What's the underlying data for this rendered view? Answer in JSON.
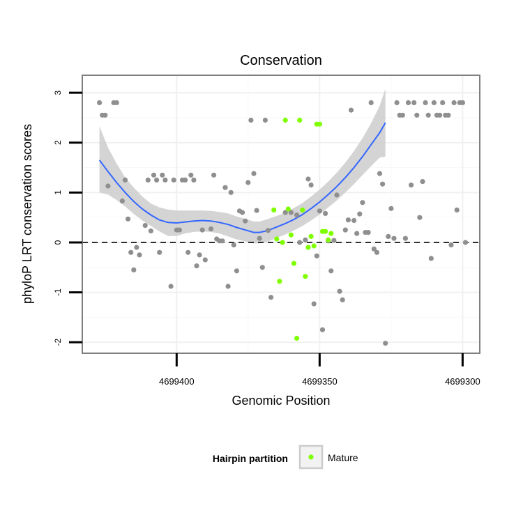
{
  "chart_data": {
    "type": "scatter",
    "title": "Conservation",
    "xlabel": "Genomic Position",
    "ylabel": "phyloP LRT conservation scores",
    "x_axis_reversed": true,
    "xlim": [
      4699433,
      4699294
    ],
    "ylim": [
      -2.22,
      3.35
    ],
    "x_ticks": [
      4699400,
      4699350,
      4699300
    ],
    "y_ticks": [
      -2,
      -1,
      0,
      1,
      2,
      3
    ],
    "reference_line": {
      "y": 0,
      "style": "dashed"
    },
    "grid": true,
    "legend": {
      "title": "Hairpin partition",
      "entries": [
        "Mature"
      ],
      "position": "bottom"
    },
    "colors": {
      "other": "#8f8f8f",
      "mature": "#7fff00",
      "smooth": "#3366ff",
      "ribbon": "#cccccc",
      "panel_border": "#7f7f7f"
    },
    "points_other": [
      [
        4699427,
        2.8
      ],
      [
        4699426,
        2.55
      ],
      [
        4699425,
        2.55
      ],
      [
        4699424,
        1.13
      ],
      [
        4699422,
        2.8
      ],
      [
        4699421,
        2.8
      ],
      [
        4699419,
        0.83
      ],
      [
        4699418,
        1.25
      ],
      [
        4699417,
        0.47
      ],
      [
        4699416,
        -0.2
      ],
      [
        4699415,
        -0.55
      ],
      [
        4699414,
        -0.1
      ],
      [
        4699413,
        -0.25
      ],
      [
        4699411,
        0.34
      ],
      [
        4699410,
        1.25
      ],
      [
        4699409,
        0.23
      ],
      [
        4699408,
        1.35
      ],
      [
        4699407,
        1.25
      ],
      [
        4699406,
        -0.2
      ],
      [
        4699405,
        1.35
      ],
      [
        4699404,
        1.25
      ],
      [
        4699402,
        -0.88
      ],
      [
        4699401,
        1.25
      ],
      [
        4699400,
        0.25
      ],
      [
        4699399,
        0.25
      ],
      [
        4699398,
        1.25
      ],
      [
        4699397,
        1.25
      ],
      [
        4699396,
        -0.2
      ],
      [
        4699395,
        1.35
      ],
      [
        4699394,
        1.25
      ],
      [
        4699393,
        -0.47
      ],
      [
        4699392,
        -0.25
      ],
      [
        4699391,
        0.25
      ],
      [
        4699390,
        -0.35
      ],
      [
        4699388,
        0.27
      ],
      [
        4699387,
        1.35
      ],
      [
        4699386,
        0.07
      ],
      [
        4699385,
        0.03
      ],
      [
        4699384,
        0.03
      ],
      [
        4699383,
        1.1
      ],
      [
        4699382,
        -0.88
      ],
      [
        4699381,
        1.0
      ],
      [
        4699380,
        -0.05
      ],
      [
        4699379,
        -0.57
      ],
      [
        4699378,
        0.63
      ],
      [
        4699377,
        0.6
      ],
      [
        4699376,
        0.43
      ],
      [
        4699375,
        1.2
      ],
      [
        4699374,
        2.45
      ],
      [
        4699373,
        1.38
      ],
      [
        4699372,
        0.64
      ],
      [
        4699371,
        0.08
      ],
      [
        4699370,
        -0.5
      ],
      [
        4699369,
        2.45
      ],
      [
        4699368,
        0.24
      ],
      [
        4699367,
        -1.1
      ],
      [
        4699362,
        0.6
      ],
      [
        4699360,
        0.6
      ],
      [
        4699358,
        0.55
      ],
      [
        4699357,
        0.0
      ],
      [
        4699355,
        0.05
      ],
      [
        4699354,
        1.27
      ],
      [
        4699353,
        1.15
      ],
      [
        4699352,
        -1.23
      ],
      [
        4699351,
        -0.27
      ],
      [
        4699350,
        0.63
      ],
      [
        4699349,
        -1.75
      ],
      [
        4699348,
        0.58
      ],
      [
        4699347,
        0.03
      ],
      [
        4699346,
        -0.57
      ],
      [
        4699345,
        0.04
      ],
      [
        4699344,
        0.95
      ],
      [
        4699343,
        -0.98
      ],
      [
        4699342,
        -1.15
      ],
      [
        4699341,
        0.25
      ],
      [
        4699340,
        0.45
      ],
      [
        4699339,
        2.65
      ],
      [
        4699338,
        0.44
      ],
      [
        4699337,
        0.18
      ],
      [
        4699336,
        0.57
      ],
      [
        4699335,
        0.8
      ],
      [
        4699334,
        0.2
      ],
      [
        4699333,
        0.2
      ],
      [
        4699332,
        2.8
      ],
      [
        4699331,
        -0.13
      ],
      [
        4699330,
        -0.2
      ],
      [
        4699329,
        1.38
      ],
      [
        4699328,
        1.17
      ],
      [
        4699327,
        -2.02
      ],
      [
        4699326,
        0.12
      ],
      [
        4699325,
        0.68
      ],
      [
        4699324,
        0.08
      ],
      [
        4699323,
        2.8
      ],
      [
        4699322,
        2.55
      ],
      [
        4699321,
        2.55
      ],
      [
        4699320,
        0.08
      ],
      [
        4699319,
        2.8
      ],
      [
        4699318,
        1.15
      ],
      [
        4699317,
        2.8
      ],
      [
        4699316,
        2.55
      ],
      [
        4699315,
        0.5
      ],
      [
        4699314,
        1.22
      ],
      [
        4699313,
        2.8
      ],
      [
        4699312,
        2.55
      ],
      [
        4699311,
        -0.32
      ],
      [
        4699310,
        2.8
      ],
      [
        4699309,
        2.55
      ],
      [
        4699308,
        2.55
      ],
      [
        4699307,
        2.8
      ],
      [
        4699306,
        2.55
      ],
      [
        4699305,
        2.55
      ],
      [
        4699304,
        -0.05
      ],
      [
        4699303,
        2.8
      ],
      [
        4699302,
        0.65
      ],
      [
        4699301,
        2.8
      ],
      [
        4699300,
        2.8
      ],
      [
        4699299,
        0.0
      ]
    ],
    "points_mature": [
      [
        4699366,
        0.65
      ],
      [
        4699365,
        0.07
      ],
      [
        4699364,
        -0.78
      ],
      [
        4699363,
        0.0
      ],
      [
        4699362,
        2.45
      ],
      [
        4699361,
        0.67
      ],
      [
        4699360,
        0.15
      ],
      [
        4699359,
        -0.42
      ],
      [
        4699358,
        -1.92
      ],
      [
        4699357,
        2.45
      ],
      [
        4699356,
        0.65
      ],
      [
        4699355,
        -0.68
      ],
      [
        4699354,
        -0.1
      ],
      [
        4699353,
        0.12
      ],
      [
        4699352,
        -0.07
      ],
      [
        4699351,
        2.37
      ],
      [
        4699350,
        2.37
      ],
      [
        4699349,
        0.22
      ],
      [
        4699348,
        0.22
      ],
      [
        4699347,
        0.05
      ],
      [
        4699346,
        0.18
      ]
    ],
    "smooth_line": [
      [
        4699427,
        1.65
      ],
      [
        4699424,
        1.42
      ],
      [
        4699421,
        1.2
      ],
      [
        4699418,
        1.0
      ],
      [
        4699415,
        0.82
      ],
      [
        4699412,
        0.67
      ],
      [
        4699409,
        0.55
      ],
      [
        4699406,
        0.45
      ],
      [
        4699403,
        0.4
      ],
      [
        4699400,
        0.39
      ],
      [
        4699397,
        0.41
      ],
      [
        4699394,
        0.43
      ],
      [
        4699391,
        0.44
      ],
      [
        4699388,
        0.43
      ],
      [
        4699385,
        0.4
      ],
      [
        4699382,
        0.36
      ],
      [
        4699379,
        0.3
      ],
      [
        4699376,
        0.25
      ],
      [
        4699373,
        0.2
      ],
      [
        4699371,
        0.2
      ],
      [
        4699368,
        0.24
      ],
      [
        4699365,
        0.31
      ],
      [
        4699362,
        0.38
      ],
      [
        4699359,
        0.46
      ],
      [
        4699356,
        0.56
      ],
      [
        4699353,
        0.68
      ],
      [
        4699350,
        0.81
      ],
      [
        4699347,
        0.96
      ],
      [
        4699344,
        1.12
      ],
      [
        4699341,
        1.3
      ],
      [
        4699338,
        1.5
      ],
      [
        4699335,
        1.72
      ],
      [
        4699332,
        1.96
      ],
      [
        4699329,
        2.2
      ],
      [
        4699327,
        2.4
      ]
    ],
    "smooth_band": [
      [
        4699427,
        2.33,
        1.0
      ],
      [
        4699424,
        1.9,
        0.96
      ],
      [
        4699421,
        1.58,
        0.85
      ],
      [
        4699418,
        1.3,
        0.72
      ],
      [
        4699415,
        1.1,
        0.57
      ],
      [
        4699412,
        0.92,
        0.44
      ],
      [
        4699409,
        0.78,
        0.33
      ],
      [
        4699406,
        0.7,
        0.22
      ],
      [
        4699403,
        0.66,
        0.13
      ],
      [
        4699400,
        0.64,
        0.13
      ],
      [
        4699397,
        0.64,
        0.18
      ],
      [
        4699394,
        0.64,
        0.21
      ],
      [
        4699391,
        0.64,
        0.22
      ],
      [
        4699388,
        0.63,
        0.21
      ],
      [
        4699385,
        0.61,
        0.18
      ],
      [
        4699382,
        0.58,
        0.12
      ],
      [
        4699379,
        0.52,
        0.06
      ],
      [
        4699376,
        0.47,
        0.02
      ],
      [
        4699373,
        0.42,
        -0.02
      ],
      [
        4699371,
        0.42,
        -0.02
      ],
      [
        4699368,
        0.47,
        0.02
      ],
      [
        4699365,
        0.53,
        0.09
      ],
      [
        4699362,
        0.6,
        0.16
      ],
      [
        4699359,
        0.69,
        0.24
      ],
      [
        4699356,
        0.79,
        0.33
      ],
      [
        4699353,
        0.92,
        0.44
      ],
      [
        4699350,
        1.06,
        0.56
      ],
      [
        4699347,
        1.22,
        0.7
      ],
      [
        4699344,
        1.4,
        0.84
      ],
      [
        4699341,
        1.6,
        1.0
      ],
      [
        4699338,
        1.83,
        1.17
      ],
      [
        4699335,
        2.09,
        1.35
      ],
      [
        4699332,
        2.39,
        1.53
      ],
      [
        4699329,
        2.74,
        1.7
      ],
      [
        4699327,
        3.08,
        1.72
      ]
    ]
  }
}
